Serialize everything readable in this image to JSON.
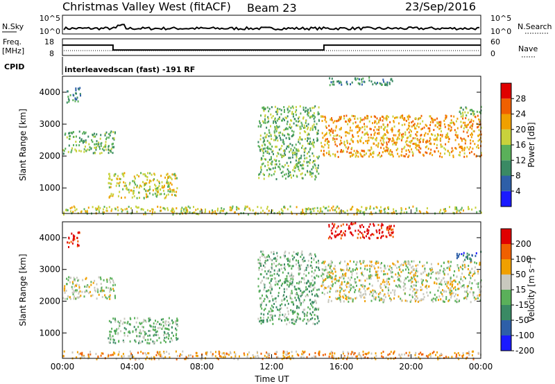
{
  "header": {
    "station": "Christmas Valley West (fitACF)",
    "beam": "Beam 23",
    "date": "23/Sep/2016"
  },
  "small_panels": {
    "nsky_label": "N.Sky",
    "nsky_ticks": [
      "10^5",
      "10^0"
    ],
    "nsearch_label": "N.Search",
    "freq_label_1": "Freq.",
    "freq_label_2": "[MHz]",
    "freq_ticks": [
      "18",
      "8"
    ],
    "nave_label": "Nave",
    "nave_ticks": [
      "60",
      "0"
    ],
    "cpid_label": "CPID",
    "cpid_text": "interleavedscan (fast) -191 RF"
  },
  "chart_data": [
    {
      "type": "heatmap",
      "name": "power",
      "xlabel": "",
      "ylabel": "Slant Range [km]",
      "x_ticks": [
        "00:00",
        "04:00",
        "08:00",
        "12:00",
        "16:00",
        "20:00",
        "00:00"
      ],
      "x_hours": [
        0,
        4,
        8,
        12,
        16,
        20,
        24
      ],
      "xlim": [
        0,
        24
      ],
      "y_ticks": [
        1000,
        2000,
        3000,
        4000
      ],
      "ylim": [
        200,
        4500
      ],
      "colorbar": {
        "label": "Power [dB]",
        "ticks": [
          4,
          8,
          12,
          16,
          20,
          24,
          28
        ],
        "range": [
          0,
          32
        ],
        "colors": [
          "#1a1aff",
          "#2e5fa8",
          "#3a8a64",
          "#5ab05a",
          "#c8d23c",
          "#f0a000",
          "#f06000",
          "#e00000"
        ]
      },
      "regions": [
        {
          "t": [
            0.0,
            3.0
          ],
          "r": [
            2100,
            2800
          ],
          "level": 3
        },
        {
          "t": [
            0.2,
            1.0
          ],
          "r": [
            3700,
            4200
          ],
          "level": 2
        },
        {
          "t": [
            2.6,
            6.6
          ],
          "r": [
            700,
            1500
          ],
          "level": 4
        },
        {
          "t": [
            11.2,
            14.7
          ],
          "r": [
            1300,
            3600
          ],
          "level": 3
        },
        {
          "t": [
            14.8,
            24.0
          ],
          "r": [
            2000,
            3300
          ],
          "level": 5
        },
        {
          "t": [
            15.2,
            19.0
          ],
          "r": [
            4250,
            4550
          ],
          "level": 2
        },
        {
          "t": [
            22.6,
            24.0
          ],
          "r": [
            3300,
            3600
          ],
          "level": 3
        },
        {
          "t": [
            0.0,
            24.0
          ],
          "r": [
            200,
            450
          ],
          "level": 4
        }
      ]
    },
    {
      "type": "heatmap",
      "name": "velocity",
      "xlabel": "Time UT",
      "ylabel": "Slant Range [km]",
      "x_ticks": [
        "00:00",
        "04:00",
        "08:00",
        "12:00",
        "16:00",
        "20:00",
        "00:00"
      ],
      "x_hours": [
        0,
        4,
        8,
        12,
        16,
        20,
        24
      ],
      "xlim": [
        0,
        24
      ],
      "y_ticks": [
        1000,
        2000,
        3000,
        4000
      ],
      "ylim": [
        200,
        4500
      ],
      "colorbar": {
        "label": "Velocity [m s⁻¹]",
        "ticks": [
          200,
          100,
          50,
          15,
          -15,
          -50,
          -100,
          -200
        ],
        "colors": [
          "#1a1aff",
          "#2e5fa8",
          "#3a8a64",
          "#5ab05a",
          "#c8c8be",
          "#f0a000",
          "#f06000",
          "#e00000"
        ]
      },
      "regions": [
        {
          "t": [
            0.0,
            3.0
          ],
          "r": [
            2100,
            2800
          ],
          "level": 4
        },
        {
          "t": [
            0.2,
            1.0
          ],
          "r": [
            3700,
            4200
          ],
          "level": 7
        },
        {
          "t": [
            2.6,
            6.6
          ],
          "r": [
            700,
            1500
          ],
          "level": 3
        },
        {
          "t": [
            11.2,
            14.7
          ],
          "r": [
            1300,
            3600
          ],
          "level": 3
        },
        {
          "t": [
            14.8,
            24.0
          ],
          "r": [
            2000,
            3300
          ],
          "level": 4
        },
        {
          "t": [
            15.2,
            19.0
          ],
          "r": [
            4000,
            4550
          ],
          "level": 7
        },
        {
          "t": [
            22.6,
            24.0
          ],
          "r": [
            3300,
            3600
          ],
          "level": 1
        },
        {
          "t": [
            0.0,
            24.0
          ],
          "r": [
            200,
            450
          ],
          "level": 5
        }
      ]
    }
  ],
  "frequency_series": {
    "t": [
      0,
      2.9,
      2.9,
      15.0,
      15.0,
      24
    ],
    "mhz": [
      14.2,
      14.2,
      11.3,
      11.3,
      14.2,
      14.2
    ]
  }
}
